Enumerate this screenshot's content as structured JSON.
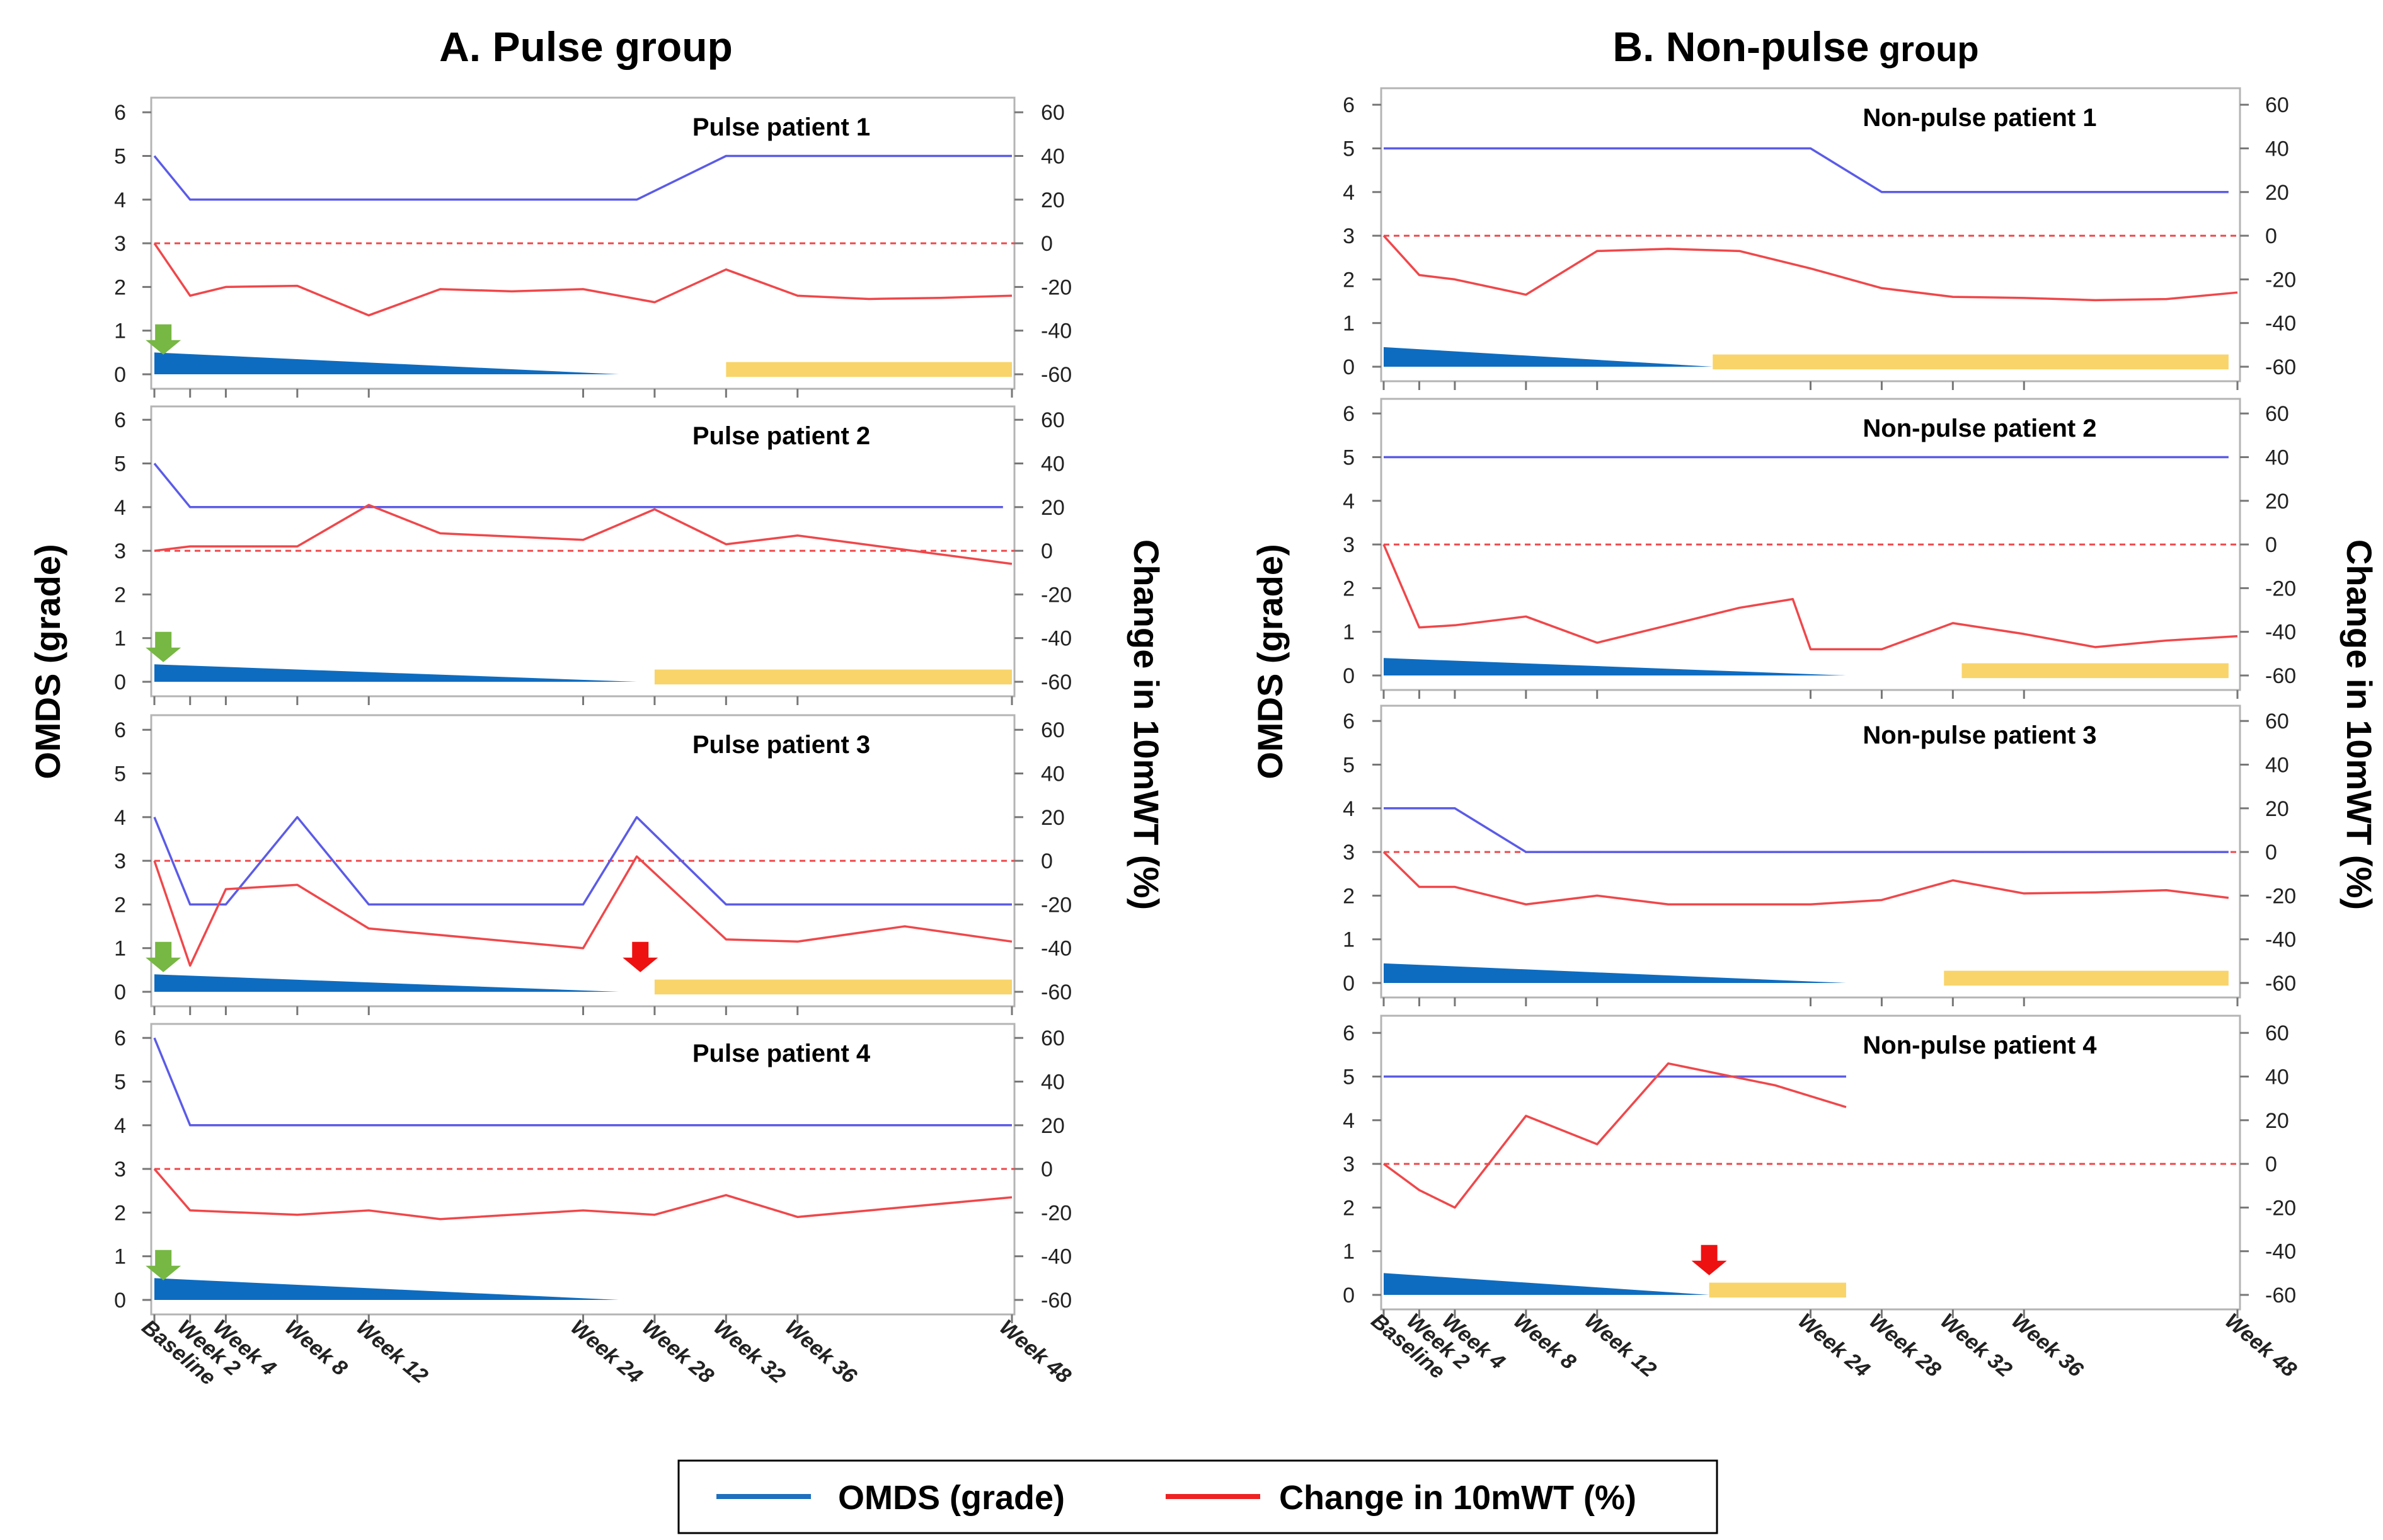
{
  "titles": {
    "left": "A. Pulse group",
    "right_prefix": "B. Non-pulse",
    "right_suffix": " group"
  },
  "axis_labels": {
    "left_y": "OMDS (grade)",
    "right_y": "Change in 10mWT (%)"
  },
  "legend": {
    "omds": "OMDS (grade)",
    "walk": "Change in 10mWT (%)"
  },
  "colors": {
    "omds_line": "#5B5BE8",
    "walk_line": "#F0474A",
    "zero_line": "#F0474A",
    "taper_fill": "#0E6CC0",
    "period_fill": "#F8D46A",
    "green_arrow": "#77B743",
    "red_arrow": "#EE1111",
    "legend_omds": "#1F6FBF",
    "legend_walk": "#EE2222"
  },
  "chart_data": [
    {
      "type": "line",
      "group": "A. Pulse group",
      "title": "Pulse patient 1",
      "x_ticks": [
        "Baseline",
        "Week 2",
        "Week 4",
        "Week 8",
        "Week 12",
        "Week 24",
        "Week 28",
        "Week 32",
        "Week 36",
        "Week 48"
      ],
      "x_tick_weeks": [
        0,
        2,
        4,
        8,
        12,
        24,
        28,
        32,
        36,
        48
      ],
      "xlim": [
        0,
        48
      ],
      "ylim_left": [
        0,
        6
      ],
      "yticks_left": [
        0,
        1,
        2,
        3,
        4,
        5,
        6
      ],
      "ylabel_left": "OMDS (grade)",
      "ylim_right": [
        -60,
        60
      ],
      "yticks_right": [
        -60,
        -40,
        -20,
        0,
        20,
        40,
        60
      ],
      "ylabel_right": "Change in 10mWT (%)",
      "series": [
        {
          "name": "OMDS (grade)",
          "axis": "left",
          "x": [
            0,
            2,
            27,
            32,
            48
          ],
          "values": [
            5,
            4,
            4,
            5,
            5
          ]
        },
        {
          "name": "Change in 10mWT (%)",
          "axis": "right",
          "x": [
            0,
            2,
            4,
            8,
            12,
            16,
            20,
            24,
            28,
            32,
            36,
            40,
            44,
            48
          ],
          "values": [
            0,
            -24,
            -20,
            -19.5,
            -33,
            -21,
            -22,
            -21,
            -27,
            -12,
            -24,
            -25.5,
            -25,
            -24
          ]
        }
      ],
      "reference_line": {
        "axis": "right",
        "value": 0
      },
      "steroid_taper": {
        "start": 0,
        "end": 26,
        "from": 0.5,
        "to": 0
      },
      "highlight_period": {
        "start": 32,
        "end": 48
      },
      "markers": [
        {
          "type": "green-arrow",
          "week": 0.5
        }
      ]
    },
    {
      "type": "line",
      "group": "A. Pulse group",
      "title": "Pulse patient 2",
      "x_ticks": [
        "Baseline",
        "Week 2",
        "Week 4",
        "Week 8",
        "Week 12",
        "Week 24",
        "Week 28",
        "Week 32",
        "Week 36",
        "Week 48"
      ],
      "x_tick_weeks": [
        0,
        2,
        4,
        8,
        12,
        24,
        28,
        32,
        36,
        48
      ],
      "xlim": [
        0,
        48
      ],
      "ylim_left": [
        0,
        6
      ],
      "yticks_left": [
        0,
        1,
        2,
        3,
        4,
        5,
        6
      ],
      "ylabel_left": "OMDS (grade)",
      "ylim_right": [
        -60,
        60
      ],
      "yticks_right": [
        -60,
        -40,
        -20,
        0,
        20,
        40,
        60
      ],
      "ylabel_right": "Change in 10mWT (%)",
      "series": [
        {
          "name": "OMDS (grade)",
          "axis": "left",
          "x": [
            0,
            2,
            47.5
          ],
          "values": [
            5,
            4,
            4
          ]
        },
        {
          "name": "Change in 10mWT (%)",
          "axis": "right",
          "x": [
            0,
            2,
            8,
            12,
            16,
            24,
            28,
            32,
            36,
            48
          ],
          "values": [
            0,
            2,
            2,
            21,
            8,
            5,
            19,
            3,
            7,
            -6
          ]
        }
      ],
      "reference_line": {
        "axis": "right",
        "value": 0
      },
      "steroid_taper": {
        "start": 0,
        "end": 27,
        "from": 0.4,
        "to": 0
      },
      "highlight_period": {
        "start": 28,
        "end": 48
      },
      "markers": [
        {
          "type": "green-arrow",
          "week": 0.5
        }
      ]
    },
    {
      "type": "line",
      "group": "A. Pulse group",
      "title": "Pulse patient 3",
      "x_ticks": [
        "Baseline",
        "Week 2",
        "Week 4",
        "Week 8",
        "Week 12",
        "Week 24",
        "Week 28",
        "Week 32",
        "Week 36",
        "Week 48"
      ],
      "x_tick_weeks": [
        0,
        2,
        4,
        8,
        12,
        24,
        28,
        32,
        36,
        48
      ],
      "xlim": [
        0,
        48
      ],
      "ylim_left": [
        0,
        6
      ],
      "yticks_left": [
        0,
        1,
        2,
        3,
        4,
        5,
        6
      ],
      "ylabel_left": "OMDS (grade)",
      "ylim_right": [
        -60,
        60
      ],
      "yticks_right": [
        -60,
        -40,
        -20,
        0,
        20,
        40,
        60
      ],
      "ylabel_right": "Change in 10mWT (%)",
      "series": [
        {
          "name": "OMDS (grade)",
          "axis": "left",
          "x": [
            0,
            2,
            4,
            8,
            12,
            24,
            27,
            32,
            48
          ],
          "values": [
            4,
            2,
            2,
            4,
            2,
            2,
            4,
            2,
            2
          ]
        },
        {
          "name": "Change in 10mWT (%)",
          "axis": "right",
          "x": [
            0,
            2,
            4,
            8,
            12,
            24,
            27,
            32,
            36,
            42,
            48
          ],
          "values": [
            0,
            -48,
            -13,
            -11,
            -31,
            -40,
            2,
            -36,
            -37,
            -30,
            -37
          ]
        }
      ],
      "reference_line": {
        "axis": "right",
        "value": 0
      },
      "steroid_taper": {
        "start": 0,
        "end": 26,
        "from": 0.4,
        "to": 0
      },
      "highlight_period": {
        "start": 28,
        "end": 48
      },
      "markers": [
        {
          "type": "green-arrow",
          "week": 0.5
        },
        {
          "type": "red-arrow",
          "week": 27.2
        }
      ]
    },
    {
      "type": "line",
      "group": "A. Pulse group",
      "title": "Pulse patient 4",
      "x_ticks": [
        "Baseline",
        "Week 2",
        "Week 4",
        "Week 8",
        "Week 12",
        "Week 24",
        "Week 28",
        "Week 32",
        "Week 36",
        "Week 48"
      ],
      "x_tick_weeks": [
        0,
        2,
        4,
        8,
        12,
        24,
        28,
        32,
        36,
        48
      ],
      "xlim": [
        0,
        48
      ],
      "ylim_left": [
        0,
        6
      ],
      "yticks_left": [
        0,
        1,
        2,
        3,
        4,
        5,
        6
      ],
      "ylabel_left": "OMDS (grade)",
      "ylim_right": [
        -60,
        60
      ],
      "yticks_right": [
        -60,
        -40,
        -20,
        0,
        20,
        40,
        60
      ],
      "ylabel_right": "Change in 10mWT (%)",
      "series": [
        {
          "name": "OMDS (grade)",
          "axis": "left",
          "x": [
            0,
            2,
            48
          ],
          "values": [
            6,
            4,
            4
          ]
        },
        {
          "name": "Change in 10mWT (%)",
          "axis": "right",
          "x": [
            0,
            2,
            8,
            12,
            16,
            24,
            28,
            32,
            36,
            48
          ],
          "values": [
            0,
            -19,
            -21,
            -19,
            -23,
            -19,
            -21,
            -12,
            -22,
            -13
          ]
        }
      ],
      "reference_line": {
        "axis": "right",
        "value": 0
      },
      "steroid_taper": {
        "start": 0,
        "end": 26,
        "from": 0.5,
        "to": 0
      },
      "highlight_period": null,
      "markers": [
        {
          "type": "green-arrow",
          "week": 0.5
        }
      ]
    },
    {
      "type": "line",
      "group": "B. Non-pulse group",
      "title": "Non-pulse patient 1",
      "x_ticks": [
        "Baseline",
        "Week 2",
        "Week 4",
        "Week 8",
        "Week 12",
        "Week 24",
        "Week 28",
        "Week 32",
        "Week 36",
        "Week 48"
      ],
      "x_tick_weeks": [
        0,
        2,
        4,
        8,
        12,
        24,
        28,
        32,
        36,
        48
      ],
      "xlim": [
        0,
        48
      ],
      "ylim_left": [
        0,
        6
      ],
      "yticks_left": [
        0,
        1,
        2,
        3,
        4,
        5,
        6
      ],
      "ylabel_left": "OMDS (grade)",
      "ylim_right": [
        -60,
        60
      ],
      "yticks_right": [
        -60,
        -40,
        -20,
        0,
        20,
        40,
        60
      ],
      "ylabel_right": "Change in 10mWT (%)",
      "series": [
        {
          "name": "OMDS (grade)",
          "axis": "left",
          "x": [
            0,
            24,
            28,
            47.5
          ],
          "values": [
            5,
            5,
            4,
            4
          ]
        },
        {
          "name": "Change in 10mWT (%)",
          "axis": "right",
          "x": [
            0,
            2,
            4,
            8,
            12,
            16,
            20,
            24,
            28,
            32,
            36,
            40,
            44,
            48
          ],
          "values": [
            0,
            -18,
            -20,
            -27,
            -7,
            -6,
            -7,
            -15,
            -24,
            -28,
            -28.5,
            -29.5,
            -29,
            -26
          ]
        }
      ],
      "reference_line": {
        "axis": "right",
        "value": 0
      },
      "steroid_taper": {
        "start": 0,
        "end": 18.5,
        "from": 0.45,
        "to": 0
      },
      "highlight_period": {
        "start": 18.5,
        "end": 47.5
      },
      "markers": []
    },
    {
      "type": "line",
      "group": "B. Non-pulse group",
      "title": "Non-pulse patient 2",
      "x_ticks": [
        "Baseline",
        "Week 2",
        "Week 4",
        "Week 8",
        "Week 12",
        "Week 24",
        "Week 28",
        "Week 32",
        "Week 36",
        "Week 48"
      ],
      "x_tick_weeks": [
        0,
        2,
        4,
        8,
        12,
        24,
        28,
        32,
        36,
        48
      ],
      "xlim": [
        0,
        48
      ],
      "ylim_left": [
        0,
        6
      ],
      "yticks_left": [
        0,
        1,
        2,
        3,
        4,
        5,
        6
      ],
      "ylabel_left": "OMDS (grade)",
      "ylim_right": [
        -60,
        60
      ],
      "yticks_right": [
        -60,
        -40,
        -20,
        0,
        20,
        40,
        60
      ],
      "ylabel_right": "Change in 10mWT (%)",
      "series": [
        {
          "name": "OMDS (grade)",
          "axis": "left",
          "x": [
            0,
            47.5
          ],
          "values": [
            5,
            5
          ]
        },
        {
          "name": "Change in 10mWT (%)",
          "axis": "right",
          "x": [
            0,
            2,
            4,
            8,
            12,
            16,
            20,
            23,
            24,
            28,
            32,
            36,
            40,
            44,
            48
          ],
          "values": [
            0,
            -38,
            -37,
            -33,
            -45,
            -37,
            -29,
            -25,
            -48,
            -48,
            -36,
            -41,
            -47,
            -44,
            -42
          ]
        }
      ],
      "reference_line": {
        "axis": "right",
        "value": 0
      },
      "steroid_taper": {
        "start": 0,
        "end": 26,
        "from": 0.4,
        "to": 0
      },
      "highlight_period": {
        "start": 32.5,
        "end": 47.5
      },
      "markers": []
    },
    {
      "type": "line",
      "group": "B. Non-pulse group",
      "title": "Non-pulse patient 3",
      "x_ticks": [
        "Baseline",
        "Week 2",
        "Week 4",
        "Week 8",
        "Week 12",
        "Week 24",
        "Week 28",
        "Week 32",
        "Week 36",
        "Week 48"
      ],
      "x_tick_weeks": [
        0,
        2,
        4,
        8,
        12,
        24,
        28,
        32,
        36,
        48
      ],
      "xlim": [
        0,
        48
      ],
      "ylim_left": [
        0,
        6
      ],
      "yticks_left": [
        0,
        1,
        2,
        3,
        4,
        5,
        6
      ],
      "ylabel_left": "OMDS (grade)",
      "ylim_right": [
        -60,
        60
      ],
      "yticks_right": [
        -60,
        -40,
        -20,
        0,
        20,
        40,
        60
      ],
      "ylabel_right": "Change in 10mWT (%)",
      "series": [
        {
          "name": "OMDS (grade)",
          "axis": "left",
          "x": [
            0,
            4,
            8,
            47.5
          ],
          "values": [
            4,
            4,
            3,
            3
          ]
        },
        {
          "name": "Change in 10mWT (%)",
          "axis": "right",
          "x": [
            0,
            2,
            4,
            8,
            12,
            16,
            20,
            24,
            28,
            32,
            36,
            40,
            44,
            47.5
          ],
          "values": [
            0,
            -16,
            -16,
            -24,
            -20,
            -24,
            -24,
            -24,
            -22,
            -13,
            -19,
            -18.5,
            -17.5,
            -21
          ]
        }
      ],
      "reference_line": {
        "axis": "right",
        "value": 0
      },
      "steroid_taper": {
        "start": 0,
        "end": 26,
        "from": 0.45,
        "to": 0
      },
      "highlight_period": {
        "start": 31.5,
        "end": 47.5
      },
      "markers": []
    },
    {
      "type": "line",
      "group": "B. Non-pulse group",
      "title": "Non-pulse patient 4",
      "x_ticks": [
        "Baseline",
        "Week 2",
        "Week 4",
        "Week 8",
        "Week 12",
        "Week 24",
        "Week 28",
        "Week 32",
        "Week 36",
        "Week 48"
      ],
      "x_tick_weeks": [
        0,
        2,
        4,
        8,
        12,
        24,
        28,
        32,
        36,
        48
      ],
      "xlim": [
        0,
        48
      ],
      "ylim_left": [
        0,
        6
      ],
      "yticks_left": [
        0,
        1,
        2,
        3,
        4,
        5,
        6
      ],
      "ylabel_left": "OMDS (grade)",
      "ylim_right": [
        -60,
        60
      ],
      "yticks_right": [
        -60,
        -40,
        -20,
        0,
        20,
        40,
        60
      ],
      "ylabel_right": "Change in 10mWT (%)",
      "series": [
        {
          "name": "OMDS (grade)",
          "axis": "left",
          "x": [
            0,
            26
          ],
          "values": [
            5,
            5
          ]
        },
        {
          "name": "Change in 10mWT (%)",
          "axis": "right",
          "x": [
            0,
            2,
            4,
            8,
            12,
            16,
            22,
            26
          ],
          "values": [
            0,
            -12,
            -20,
            22,
            9,
            46,
            36,
            26
          ]
        }
      ],
      "reference_line": {
        "axis": "right",
        "value": 0
      },
      "steroid_taper": {
        "start": 0,
        "end": 18.3,
        "from": 0.5,
        "to": 0
      },
      "highlight_period": {
        "start": 18.3,
        "end": 26
      },
      "markers": [
        {
          "type": "red-arrow",
          "week": 18.3
        }
      ]
    }
  ]
}
